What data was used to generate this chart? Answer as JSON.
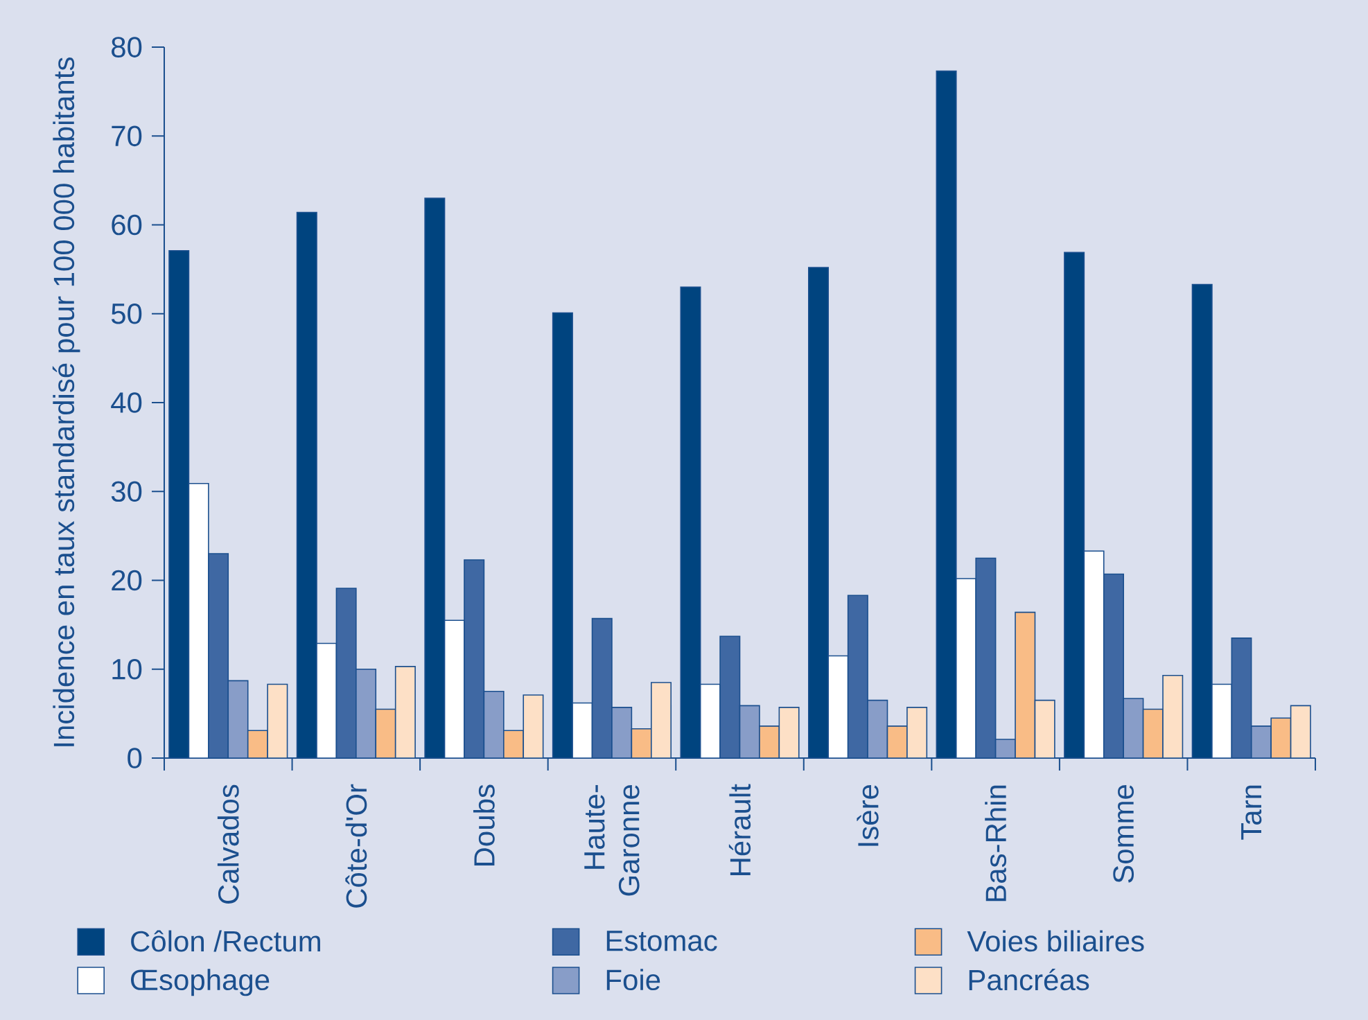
{
  "chart_data": {
    "type": "bar",
    "ylabel": "Incidence en taux standardisé pour 100 000 habitants",
    "categories": [
      "Calvados",
      "Côte-d'Or",
      "Doubs",
      "Haute-Garonne",
      "Hérault",
      "Isère",
      "Bas-Rhin",
      "Somme",
      "Tarn"
    ],
    "ylim": [
      0,
      80
    ],
    "yticks": [
      0,
      10,
      20,
      30,
      40,
      50,
      60,
      70,
      80
    ],
    "legend": "bottom",
    "series": [
      {
        "name": "Côlon /Rectum",
        "color": "#00447f",
        "values": [
          57.1,
          61.4,
          63.0,
          50.1,
          53.0,
          55.2,
          77.3,
          56.9,
          53.3
        ]
      },
      {
        "name": "Œsophage",
        "color": "#ffffff",
        "values": [
          30.9,
          12.9,
          15.5,
          6.2,
          8.3,
          11.5,
          20.2,
          23.3,
          8.3
        ]
      },
      {
        "name": "Estomac",
        "color": "#3f68a3",
        "values": [
          23.0,
          19.1,
          22.3,
          15.7,
          13.7,
          18.3,
          22.5,
          20.7,
          13.5
        ]
      },
      {
        "name": "Foie",
        "color": "#889dc8",
        "values": [
          8.7,
          10.0,
          7.5,
          5.7,
          5.9,
          6.5,
          2.1,
          6.7,
          3.6
        ]
      },
      {
        "name": "Voies biliaires",
        "color": "#f9bc86",
        "values": [
          3.1,
          5.5,
          3.1,
          3.3,
          3.6,
          3.6,
          16.4,
          5.5,
          4.5
        ]
      },
      {
        "name": "Pancréas",
        "color": "#fde0c6",
        "values": [
          8.3,
          10.3,
          7.1,
          8.5,
          5.7,
          5.7,
          6.5,
          9.3,
          5.9
        ]
      }
    ]
  }
}
